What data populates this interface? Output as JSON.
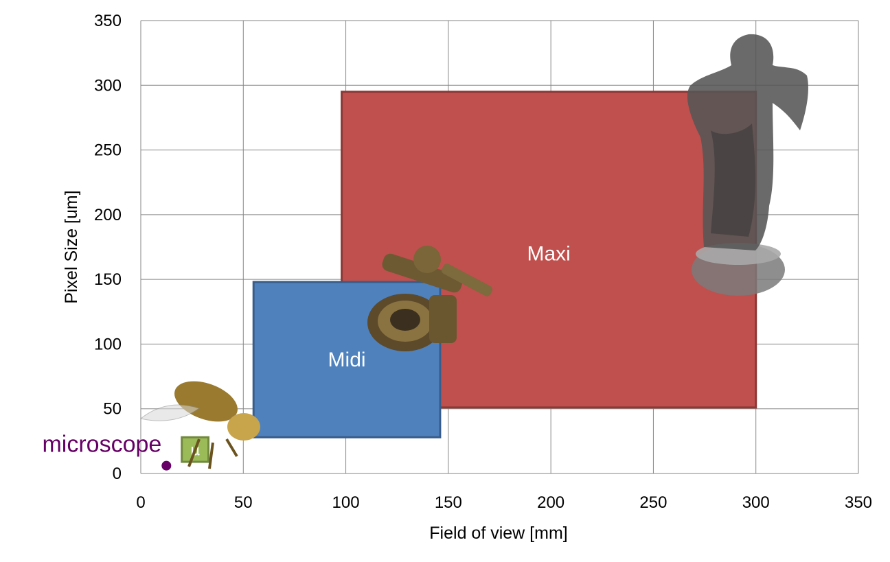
{
  "chart_data": {
    "type": "scatter",
    "xlabel": "Field of view [mm]",
    "ylabel": "Pixel Size [um]",
    "xlim": [
      0,
      350
    ],
    "ylim": [
      0,
      350
    ],
    "xticks": [
      0,
      50,
      100,
      150,
      200,
      250,
      300,
      350
    ],
    "yticks": [
      0,
      50,
      100,
      150,
      200,
      250,
      300,
      350
    ],
    "grid": true,
    "regions": [
      {
        "name": "Maxi",
        "x0": 98,
        "x1": 300,
        "y0": 51,
        "y1": 295,
        "color": "#c0504d",
        "edge": "#8c3836"
      },
      {
        "name": "Midi",
        "x0": 55,
        "x1": 146,
        "y0": 28,
        "y1": 148,
        "color": "#4f81bd",
        "edge": "#385d8a"
      },
      {
        "name": "μ",
        "x0": 20,
        "x1": 33,
        "y0": 9,
        "y1": 28,
        "color": "#9bbb59",
        "edge": "#71893f"
      }
    ],
    "points": [
      {
        "name": "microscope",
        "x": 12.5,
        "y": 6,
        "color": "#660066"
      }
    ]
  }
}
